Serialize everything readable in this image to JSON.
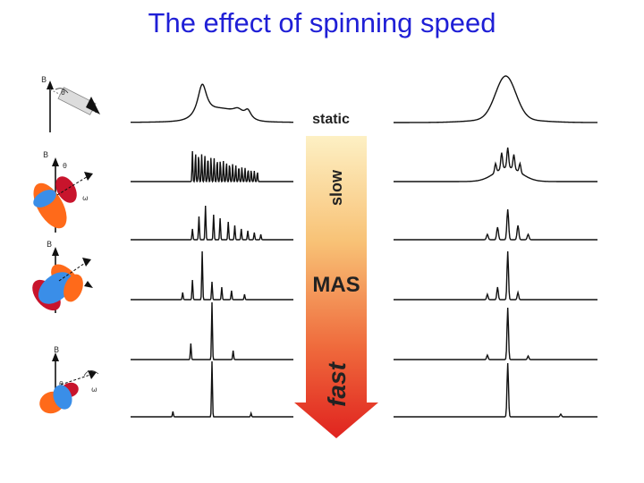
{
  "slide": {
    "title": "The effect of spinning speed"
  },
  "arrow": {
    "static_label": "static",
    "slow_label": "slow",
    "mas_label": "MAS",
    "fast_label": "fast"
  },
  "rotor_diagrams": {
    "field_label": "B",
    "field_subscript": "0",
    "angle_labels": [
      "θ",
      "θ",
      "θ"
    ],
    "rotor_angle_label": "ω"
  },
  "spectra": {
    "rows": [
      "static",
      "slow-1",
      "slow-2",
      "medium",
      "fast-1",
      "fast-2"
    ]
  },
  "colors": {
    "title": "#1f1fd6",
    "arrow_top": "#fce8b0",
    "arrow_bottom": "#e0231f",
    "lobe_orange": "#ff6a1a",
    "lobe_red": "#c8142c",
    "lobe_blue": "#3a8ee8"
  }
}
